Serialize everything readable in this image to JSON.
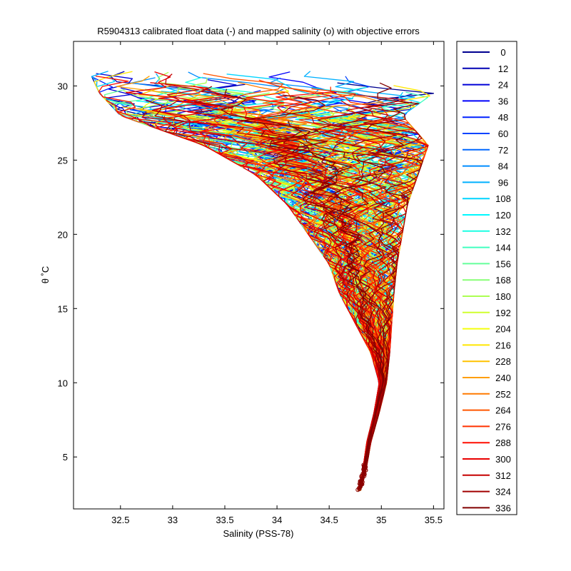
{
  "chart_data": {
    "type": "line",
    "title": "R5904313 calibrated float data (-) and mapped salinity (o) with objective errors",
    "xlabel": "Salinity (PSS-78)",
    "ylabel": "θ ˚C",
    "xlim": [
      32.05,
      35.6
    ],
    "ylim": [
      1.5,
      33
    ],
    "xticks": [
      32.5,
      33,
      33.5,
      34,
      34.5,
      35,
      35.5
    ],
    "yticks": [
      5,
      10,
      15,
      20,
      25,
      30
    ],
    "grid": false,
    "legend_position": "outside-right",
    "colormap": "jet",
    "legend": {
      "entries": [
        "0",
        "12",
        "24",
        "36",
        "48",
        "60",
        "72",
        "84",
        "96",
        "108",
        "120",
        "132",
        "144",
        "156",
        "168",
        "180",
        "192",
        "204",
        "216",
        "228",
        "240",
        "252",
        "264",
        "276",
        "288",
        "300",
        "312",
        "324",
        "336"
      ],
      "colors": [
        "#00008f",
        "#0000b3",
        "#0000d7",
        "#0000fb",
        "#0020ff",
        "#0044ff",
        "#0068ff",
        "#008cff",
        "#00b0ff",
        "#00d4ff",
        "#00f8ff",
        "#1cffe3",
        "#40ffbf",
        "#64ff9b",
        "#88ff77",
        "#acff53",
        "#d0ff2f",
        "#f4ff0b",
        "#ffe600",
        "#ffc200",
        "#ff9e00",
        "#ff7a00",
        "#ff5600",
        "#ff3200",
        "#ff0e00",
        "#e90000",
        "#c50000",
        "#a10000",
        "#800000"
      ]
    },
    "envelope": [
      {
        "temp": 31,
        "s_min": 32.2,
        "s_max": 34.4
      },
      {
        "temp": 29.5,
        "s_min": 32.3,
        "s_max": 35.5
      },
      {
        "temp": 28,
        "s_min": 32.5,
        "s_max": 35.2
      },
      {
        "temp": 26,
        "s_min": 33.3,
        "s_max": 35.45
      },
      {
        "temp": 24,
        "s_min": 33.8,
        "s_max": 35.35
      },
      {
        "temp": 22,
        "s_min": 34.1,
        "s_max": 35.25
      },
      {
        "temp": 20,
        "s_min": 34.3,
        "s_max": 35.2
      },
      {
        "temp": 18,
        "s_min": 34.5,
        "s_max": 35.15
      },
      {
        "temp": 16,
        "s_min": 34.6,
        "s_max": 35.12
      },
      {
        "temp": 14,
        "s_min": 34.75,
        "s_max": 35.1
      },
      {
        "temp": 12,
        "s_min": 34.9,
        "s_max": 35.08
      },
      {
        "temp": 10,
        "s_min": 34.98,
        "s_max": 35.05
      },
      {
        "temp": 8,
        "s_min": 34.93,
        "s_max": 34.98
      },
      {
        "temp": 6,
        "s_min": 34.86,
        "s_max": 34.9
      },
      {
        "temp": 4,
        "s_min": 34.82,
        "s_max": 34.85
      },
      {
        "temp": 2.7,
        "s_min": 34.77,
        "s_max": 34.8
      }
    ]
  }
}
